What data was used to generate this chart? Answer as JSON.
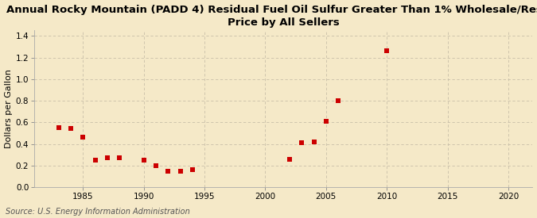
{
  "title": "Annual Rocky Mountain (PADD 4) Residual Fuel Oil Sulfur Greater Than 1% Wholesale/Resale\nPrice by All Sellers",
  "ylabel": "Dollars per Gallon",
  "source": "Source: U.S. Energy Information Administration",
  "background_color": "#f5e9c8",
  "plot_bg_color": "#fdf6e3",
  "xlim": [
    1981,
    2022
  ],
  "ylim": [
    0.0,
    1.45
  ],
  "yticks": [
    0.0,
    0.2,
    0.4,
    0.6,
    0.8,
    1.0,
    1.2,
    1.4
  ],
  "xticks": [
    1985,
    1990,
    1995,
    2000,
    2005,
    2010,
    2015,
    2020
  ],
  "data_x": [
    1983,
    1984,
    1985,
    1986,
    1987,
    1988,
    1990,
    1991,
    1992,
    1993,
    1994,
    2002,
    2003,
    2004,
    2005,
    2006,
    2010
  ],
  "data_y": [
    0.55,
    0.54,
    0.46,
    0.25,
    0.27,
    0.27,
    0.25,
    0.2,
    0.15,
    0.15,
    0.16,
    0.26,
    0.41,
    0.42,
    0.61,
    0.8,
    1.26
  ],
  "marker_color": "#cc0000",
  "marker": "s",
  "marker_size": 4,
  "grid_color": "#c8bfa8",
  "title_fontsize": 9.5,
  "title_fontweight": "bold",
  "axis_label_fontsize": 8,
  "tick_fontsize": 7.5,
  "source_fontsize": 7
}
